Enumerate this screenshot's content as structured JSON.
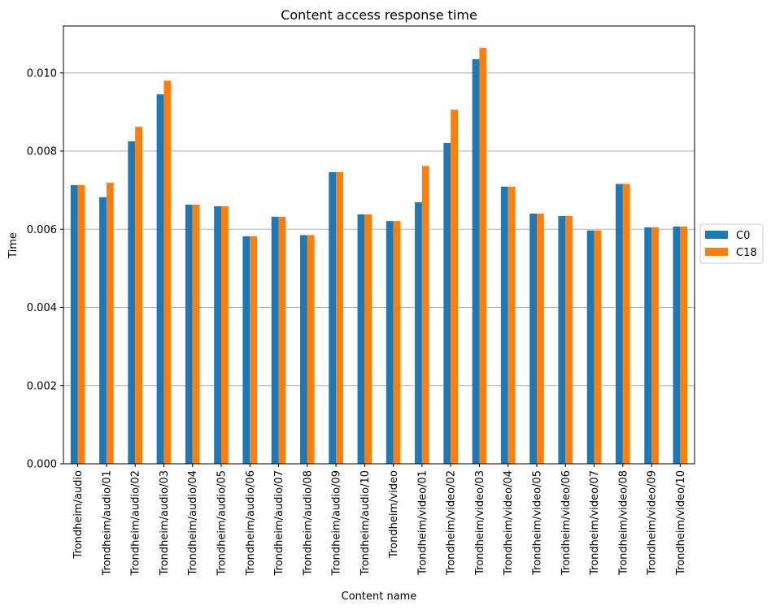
{
  "chart_data": {
    "type": "bar",
    "title": "Content access response time",
    "xlabel": "Content name",
    "ylabel": "Time",
    "ylim": [
      0,
      0.0112
    ],
    "yticks": [
      0.0,
      0.002,
      0.004,
      0.006,
      0.008,
      0.01
    ],
    "ytick_labels": [
      "0.000",
      "0.002",
      "0.004",
      "0.006",
      "0.008",
      "0.010"
    ],
    "grid": "horizontal",
    "legend_position": "outside right, vertically centered",
    "categories": [
      "Trondheim/audio",
      "Trondheim/audio/01",
      "Trondheim/audio/02",
      "Trondheim/audio/03",
      "Trondheim/audio/04",
      "Trondheim/audio/05",
      "Trondheim/audio/06",
      "Trondheim/audio/07",
      "Trondheim/audio/08",
      "Trondheim/audio/09",
      "Trondheim/audio/10",
      "Trondheim/video",
      "Trondheim/video/01",
      "Trondheim/video/02",
      "Trondheim/video/03",
      "Trondheim/video/04",
      "Trondheim/video/05",
      "Trondheim/video/06",
      "Trondheim/video/07",
      "Trondheim/video/08",
      "Trondheim/video/09",
      "Trondheim/video/10"
    ],
    "series": [
      {
        "name": "C0",
        "color": "#1f77b4",
        "values": [
          0.00713,
          0.00682,
          0.00825,
          0.00945,
          0.00663,
          0.00659,
          0.00582,
          0.00632,
          0.00585,
          0.00746,
          0.00638,
          0.00621,
          0.00669,
          0.00821,
          0.01035,
          0.00709,
          0.0064,
          0.00634,
          0.00597,
          0.00716,
          0.00605,
          0.00607
        ]
      },
      {
        "name": "C18",
        "color": "#ff7f0e",
        "values": [
          0.00713,
          0.00719,
          0.00862,
          0.0098,
          0.00663,
          0.00659,
          0.00582,
          0.00632,
          0.00585,
          0.00746,
          0.00638,
          0.00621,
          0.00762,
          0.00906,
          0.01064,
          0.00709,
          0.0064,
          0.00634,
          0.00597,
          0.00716,
          0.00605,
          0.00607
        ]
      }
    ]
  }
}
